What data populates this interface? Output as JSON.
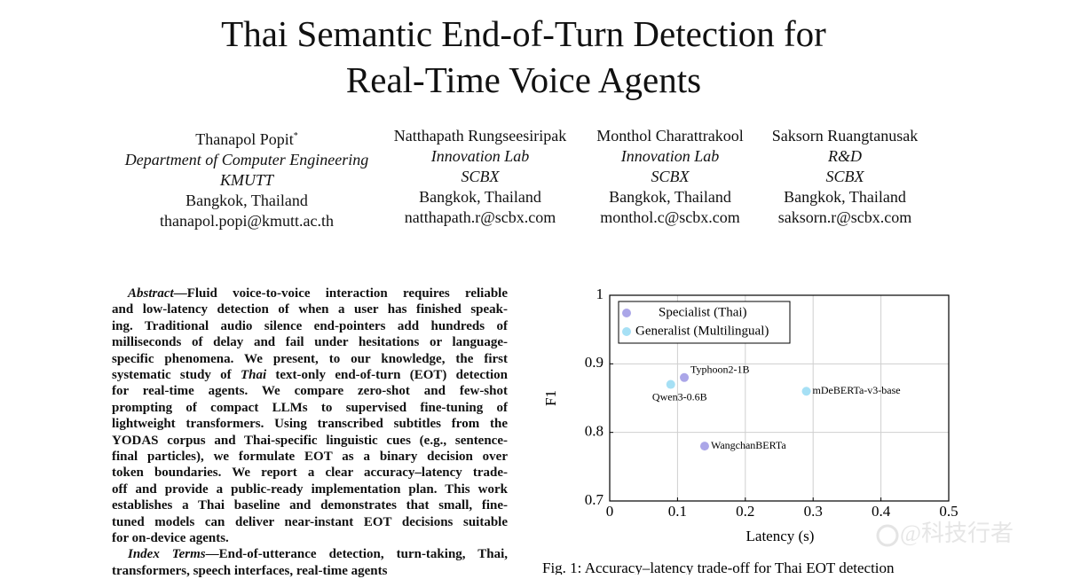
{
  "title": {
    "lines": [
      "Thai Semantic End-of-Turn Detection for",
      "Real-Time Voice Agents"
    ]
  },
  "authors": [
    {
      "name": "Thanapol Popit",
      "mark": "*",
      "department": "Department of Computer Engineering",
      "org": "KMUTT",
      "location": "Bangkok, Thailand",
      "email": "thanapol.popi@kmutt.ac.th"
    },
    {
      "name": "Natthapath Rungseesiripak",
      "department": "Innovation Lab",
      "org": "SCBX",
      "location": "Bangkok, Thailand",
      "email": "natthapath.r@scbx.com"
    },
    {
      "name": "Monthol Charattrakool",
      "department": "Innovation Lab",
      "org": "SCBX",
      "location": "Bangkok, Thailand",
      "email": "monthol.c@scbx.com"
    },
    {
      "name": "Saksorn Ruangtanusak",
      "department": "R&D",
      "org": "SCBX",
      "location": "Bangkok, Thailand",
      "email": "saksorn.r@scbx.com"
    }
  ],
  "abstract": {
    "label": "Abstract",
    "lines": [
      [
        "—Fluid voice-to-voice interaction requires reliable"
      ],
      [
        "and low-latency detection of when a user has finished speak-"
      ],
      [
        "ing. Traditional audio silence end-pointers add hundreds of"
      ],
      [
        "milliseconds of delay and fail under hesitations or language-"
      ],
      [
        "specific phenomena. We present, to our knowledge, the first"
      ],
      [
        "systematic study of ",
        "Thai",
        " text-only end-of-turn (EOT) detection"
      ],
      [
        "for real-time agents. We compare zero-shot and few-shot"
      ],
      [
        "prompting of compact LLMs to supervised fine-tuning of"
      ],
      [
        "lightweight transformers. Using transcribed subtitles from the"
      ],
      [
        "YODAS corpus and Thai-specific linguistic cues (e.g., sentence-"
      ],
      [
        "final particles), we formulate EOT as a binary decision over"
      ],
      [
        "token boundaries. We report a clear accuracy–latency trade-"
      ],
      [
        "off and provide a public-ready implementation plan. This work"
      ],
      [
        "establishes a Thai baseline and demonstrates that small, fine-"
      ],
      [
        "tuned models can deliver near-instant EOT decisions suitable"
      ],
      [
        "for on-device agents."
      ]
    ]
  },
  "index_terms": {
    "label": "Index Terms",
    "lines": [
      "—End-of-utterance detection, turn-taking, Thai,",
      "transformers, speech interfaces, real-time agents"
    ]
  },
  "chart_data": {
    "type": "scatter",
    "xlabel": "Latency (s)",
    "ylabel": "F1",
    "xlim": [
      0,
      0.5
    ],
    "ylim": [
      0.7,
      1
    ],
    "xticks": [
      0,
      0.1,
      0.2,
      0.3,
      0.4,
      0.5
    ],
    "yticks": [
      0.7,
      0.8,
      0.9,
      1
    ],
    "grid": true,
    "legend": "upper left",
    "series": [
      {
        "name": "Specialist (Thai)",
        "color": "#aba6e8",
        "x": [
          0.11,
          0.14
        ],
        "values": [
          0.88,
          0.78
        ],
        "labels": [
          "Typhoon2-1B",
          "WangchanBERTa"
        ]
      },
      {
        "name": "Generalist (Multilingual)",
        "color": "#a6e0f5",
        "x": [
          0.09,
          0.29
        ],
        "values": [
          0.87,
          0.86
        ],
        "labels": [
          "Qwen3-0.6B",
          "mDeBERTa-v3-base"
        ]
      }
    ]
  },
  "caption": "Fig. 1: Accuracy–latency trade-off for Thai EOT detection",
  "watermark": "@科技行者"
}
